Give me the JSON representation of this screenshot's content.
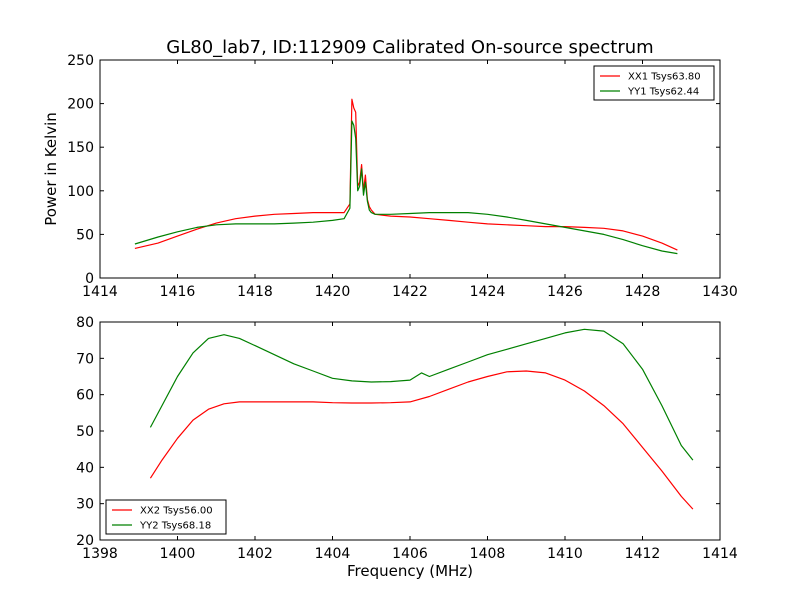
{
  "title": "GL80_lab7, ID:112909 Calibrated On-source spectrum",
  "colors": {
    "red": "#ff0000",
    "green": "#008000",
    "axis": "#000000"
  },
  "chart_data": [
    {
      "type": "line",
      "ylabel": "Power in Kelvin",
      "xlabel": "",
      "xlim": [
        1414,
        1430
      ],
      "ylim": [
        0,
        250
      ],
      "xticks": [
        "1414",
        "1416",
        "1418",
        "1420",
        "1422",
        "1424",
        "1426",
        "1428",
        "1430"
      ],
      "yticks": [
        "0",
        "50",
        "100",
        "150",
        "200",
        "250"
      ],
      "legend_position": "top-right",
      "series": [
        {
          "name": "XX1 Tsys63.80",
          "color": "#ff0000",
          "x": [
            1414.9,
            1415.5,
            1416.0,
            1416.5,
            1417.0,
            1417.5,
            1418.0,
            1418.5,
            1419.0,
            1419.5,
            1420.0,
            1420.3,
            1420.45,
            1420.5,
            1420.55,
            1420.6,
            1420.65,
            1420.7,
            1420.75,
            1420.8,
            1420.85,
            1420.9,
            1420.95,
            1421.0,
            1421.1,
            1421.5,
            1422.0,
            1422.5,
            1423.0,
            1423.5,
            1424.0,
            1424.5,
            1425.0,
            1425.5,
            1426.0,
            1426.5,
            1427.0,
            1427.5,
            1428.0,
            1428.5,
            1428.9
          ],
          "y": [
            34,
            40,
            48,
            56,
            63,
            68,
            71,
            73,
            74,
            75,
            75,
            75,
            85,
            205,
            195,
            190,
            105,
            110,
            130,
            100,
            118,
            90,
            82,
            78,
            73,
            71,
            70,
            68,
            66,
            64,
            62,
            61,
            60,
            59,
            59,
            58,
            57,
            54,
            48,
            40,
            32
          ]
        },
        {
          "name": "YY1 Tsys62.44",
          "color": "#008000",
          "x": [
            1414.9,
            1415.5,
            1416.0,
            1416.5,
            1417.0,
            1417.5,
            1418.0,
            1418.5,
            1419.0,
            1419.5,
            1420.0,
            1420.3,
            1420.45,
            1420.5,
            1420.55,
            1420.6,
            1420.65,
            1420.7,
            1420.75,
            1420.8,
            1420.85,
            1420.9,
            1420.95,
            1421.0,
            1421.1,
            1421.5,
            1422.0,
            1422.5,
            1423.0,
            1423.5,
            1424.0,
            1424.5,
            1425.0,
            1425.5,
            1426.0,
            1426.5,
            1427.0,
            1427.5,
            1428.0,
            1428.5,
            1428.9
          ],
          "y": [
            39,
            47,
            53,
            58,
            61,
            62,
            62,
            62,
            63,
            64,
            66,
            68,
            80,
            180,
            175,
            160,
            100,
            105,
            125,
            95,
            110,
            88,
            78,
            75,
            73,
            73,
            74,
            75,
            75,
            75,
            73,
            70,
            66,
            62,
            58,
            54,
            50,
            44,
            37,
            31,
            28
          ]
        }
      ]
    },
    {
      "type": "line",
      "ylabel": "",
      "xlabel": "Frequency (MHz)",
      "xlim": [
        1398,
        1414
      ],
      "ylim": [
        20,
        80
      ],
      "xticks": [
        "1398",
        "1400",
        "1402",
        "1404",
        "1406",
        "1408",
        "1410",
        "1412",
        "1414"
      ],
      "yticks": [
        "20",
        "30",
        "40",
        "50",
        "60",
        "70",
        "80"
      ],
      "legend_position": "bottom-left",
      "series": [
        {
          "name": "XX2 Tsys56.00",
          "color": "#ff0000",
          "x": [
            1399.3,
            1399.6,
            1400.0,
            1400.4,
            1400.8,
            1401.2,
            1401.6,
            1402.0,
            1402.5,
            1403.0,
            1403.5,
            1404.0,
            1404.5,
            1405.0,
            1405.5,
            1406.0,
            1406.5,
            1407.0,
            1407.5,
            1408.0,
            1408.5,
            1409.0,
            1409.5,
            1410.0,
            1410.5,
            1411.0,
            1411.5,
            1412.0,
            1412.5,
            1413.0,
            1413.3
          ],
          "y": [
            37,
            42,
            48,
            53,
            56,
            57.5,
            58,
            58,
            58,
            58,
            58,
            57.8,
            57.7,
            57.7,
            57.8,
            58,
            59.5,
            61.5,
            63.5,
            65,
            66.3,
            66.5,
            66,
            64,
            61,
            57,
            52,
            45.5,
            39,
            32,
            28.5
          ]
        },
        {
          "name": "YY2 Tsys68.18",
          "color": "#008000",
          "x": [
            1399.3,
            1399.6,
            1400.0,
            1400.4,
            1400.8,
            1401.2,
            1401.6,
            1402.0,
            1402.5,
            1403.0,
            1403.5,
            1404.0,
            1404.5,
            1405.0,
            1405.5,
            1406.0,
            1406.3,
            1406.5,
            1407.0,
            1407.5,
            1408.0,
            1408.5,
            1409.0,
            1409.5,
            1410.0,
            1410.5,
            1411.0,
            1411.5,
            1412.0,
            1412.5,
            1413.0,
            1413.3
          ],
          "y": [
            51,
            57,
            65,
            71.5,
            75.5,
            76.5,
            75.5,
            73.5,
            71,
            68.5,
            66.5,
            64.5,
            63.8,
            63.5,
            63.6,
            64,
            66,
            65,
            67,
            69,
            71,
            72.5,
            74,
            75.5,
            77,
            78,
            77.5,
            74,
            67,
            57,
            46,
            42
          ]
        }
      ]
    }
  ]
}
